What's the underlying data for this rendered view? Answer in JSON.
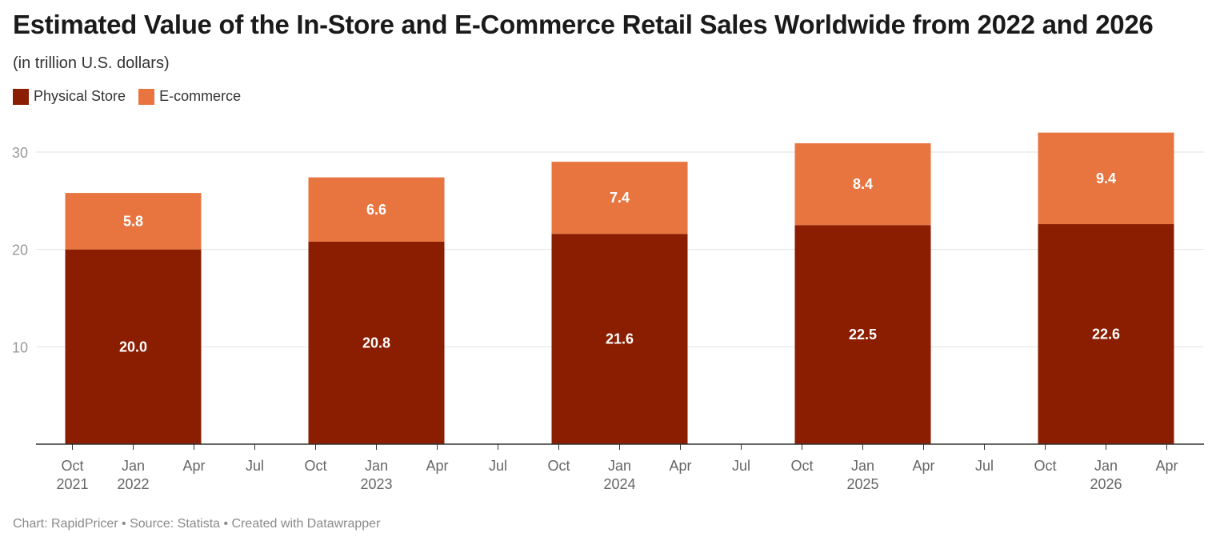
{
  "header": {
    "title": "Estimated Value of the In-Store and E-Commerce Retail Sales Worldwide from 2022 and 2026",
    "subtitle": "(in trillion U.S. dollars)"
  },
  "legend": {
    "items": [
      {
        "label": "Physical Store",
        "color": "#8b1e00"
      },
      {
        "label": "E-commerce",
        "color": "#e87540"
      }
    ]
  },
  "footer": {
    "credit": "Chart: RapidPricer • Source: Statista • Created with Datawrapper"
  },
  "chart_data": {
    "type": "bar",
    "stacked": true,
    "categories": [
      "2022",
      "2023",
      "2024",
      "2025",
      "2026"
    ],
    "series": [
      {
        "name": "Physical Store",
        "color": "#8b1e00",
        "values": [
          20.0,
          20.8,
          21.6,
          22.5,
          22.6
        ],
        "labels": [
          "20.0",
          "20.8",
          "21.6",
          "22.5",
          "22.6"
        ]
      },
      {
        "name": "E-commerce",
        "color": "#e87540",
        "values": [
          5.8,
          6.6,
          7.4,
          8.4,
          9.4
        ],
        "labels": [
          "5.8",
          "6.6",
          "7.4",
          "8.4",
          "9.4"
        ]
      }
    ],
    "ylim": [
      0,
      30
    ],
    "yticks": [
      10,
      20,
      30
    ],
    "x_tick_labels": [
      [
        "Oct",
        "2021"
      ],
      [
        "Jan",
        "2022"
      ],
      [
        "Apr",
        ""
      ],
      [
        "Jul",
        ""
      ],
      [
        "Oct",
        ""
      ],
      [
        "Jan",
        "2023"
      ],
      [
        "Apr",
        ""
      ],
      [
        "Jul",
        ""
      ],
      [
        "Oct",
        ""
      ],
      [
        "Jan",
        "2024"
      ],
      [
        "Apr",
        ""
      ],
      [
        "Jul",
        ""
      ],
      [
        "Oct",
        ""
      ],
      [
        "Jan",
        "2025"
      ],
      [
        "Apr",
        ""
      ],
      [
        "Jul",
        ""
      ],
      [
        "Oct",
        ""
      ],
      [
        "Jan",
        "2026"
      ],
      [
        "Apr",
        ""
      ]
    ],
    "grid": true,
    "legend_position": "top-left",
    "xlabel": "",
    "ylabel": ""
  }
}
